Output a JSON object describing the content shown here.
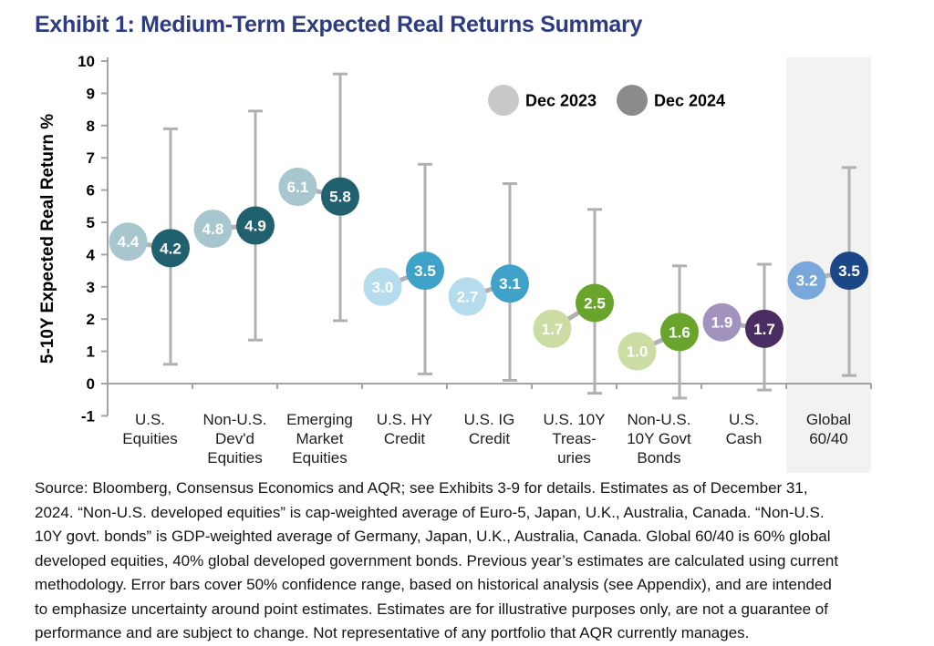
{
  "title": "Exhibit 1: Medium-Term Expected Real Returns Summary",
  "colors": {
    "title_navy": "#2d3c80",
    "axis_gray": "#a3a3a3",
    "error_bar_gray": "#b0b0b0",
    "highlight_band": "#f2f2f2",
    "value_text": "#ffffff"
  },
  "chart_data": {
    "type": "scatter",
    "title": "Exhibit 1: Medium-Term Expected Real Returns Summary",
    "ylabel": "5-10Y Expected Real Return %",
    "xlabel": "",
    "ylim": [
      -1,
      10
    ],
    "yticks": [
      10,
      9,
      8,
      7,
      6,
      5,
      4,
      3,
      2,
      1,
      0,
      -1
    ],
    "grid": false,
    "legend_position": "top-inside",
    "error_bar_note": "Error bars cover 50% confidence range",
    "series": [
      {
        "name": "Dec 2023",
        "color": "#c9c9c9"
      },
      {
        "name": "Dec 2024",
        "color": "#8b8b8b"
      }
    ],
    "categories": [
      "U.S. Equities",
      "Non-U.S. Dev'd Equities",
      "Emerging Market Equities",
      "U.S. HY Credit",
      "U.S. IG Credit",
      "U.S. 10Y Treasuries",
      "Non-U.S. 10Y Govt Bonds",
      "U.S. Cash",
      "Global 60/40"
    ],
    "points": [
      {
        "category": "U.S. Equities",
        "label_lines": [
          "U.S.",
          "Equities"
        ],
        "dec2023": 4.4,
        "dec2024": 4.2,
        "err_range": [
          0.6,
          7.9
        ],
        "color_2023": "#a7c6cd",
        "color_2024": "#21616f",
        "highlighted": false
      },
      {
        "category": "Non-U.S. Dev'd Equities",
        "label_lines": [
          "Non-U.S.",
          "Dev'd",
          "Equities"
        ],
        "dec2023": 4.8,
        "dec2024": 4.9,
        "err_range": [
          1.35,
          8.45
        ],
        "color_2023": "#a7c6cd",
        "color_2024": "#21616f",
        "highlighted": false
      },
      {
        "category": "Emerging Market Equities",
        "label_lines": [
          "Emerging",
          "Market",
          "Equities"
        ],
        "dec2023": 6.1,
        "dec2024": 5.8,
        "err_range": [
          1.95,
          9.6
        ],
        "color_2023": "#a7c6cd",
        "color_2024": "#21616f",
        "highlighted": false
      },
      {
        "category": "U.S. HY Credit",
        "label_lines": [
          "U.S. HY",
          "Credit"
        ],
        "dec2023": 3.0,
        "dec2024": 3.5,
        "err_range": [
          0.3,
          6.8
        ],
        "color_2023": "#b4dcec",
        "color_2024": "#3fa2c8",
        "highlighted": false
      },
      {
        "category": "U.S. IG Credit",
        "label_lines": [
          "U.S. IG",
          "Credit"
        ],
        "dec2023": 2.7,
        "dec2024": 3.1,
        "err_range": [
          0.1,
          6.2
        ],
        "color_2023": "#b4dcec",
        "color_2024": "#3fa2c8",
        "highlighted": false
      },
      {
        "category": "U.S. 10Y Treasuries",
        "label_lines": [
          "U.S. 10Y",
          "Treas-",
          "uries"
        ],
        "dec2023": 1.7,
        "dec2024": 2.5,
        "err_range": [
          -0.3,
          5.4
        ],
        "color_2023": "#cbdda3",
        "color_2024": "#69a52d",
        "highlighted": false
      },
      {
        "category": "Non-U.S. 10Y Govt Bonds",
        "label_lines": [
          "Non-U.S.",
          "10Y Govt",
          "Bonds"
        ],
        "dec2023": 1.0,
        "dec2024": 1.6,
        "err_range": [
          -0.45,
          3.65
        ],
        "color_2023": "#cbdda3",
        "color_2024": "#69a52d",
        "highlighted": false
      },
      {
        "category": "U.S. Cash",
        "label_lines": [
          "U.S.",
          "Cash"
        ],
        "dec2023": 1.9,
        "dec2024": 1.7,
        "err_range": [
          -0.2,
          3.7
        ],
        "color_2023": "#a193bd",
        "color_2024": "#4b2e61",
        "highlighted": false
      },
      {
        "category": "Global 60/40",
        "label_lines": [
          "Global",
          "60/40"
        ],
        "dec2023": 3.2,
        "dec2024": 3.5,
        "err_range": [
          0.25,
          6.7
        ],
        "color_2023": "#78a8db",
        "color_2024": "#1c4787",
        "highlighted": true
      }
    ]
  },
  "footer": {
    "lines": [
      "Source: Bloomberg, Consensus Economics and AQR; see Exhibits 3-9 for details. Estimates as of December 31,",
      "2024. “Non-U.S. developed equities” is cap-weighted average of Euro-5, Japan, U.K., Australia, Canada. “Non-U.S.",
      "10Y govt. bonds” is GDP-weighted average of Germany, Japan, U.K., Australia, Canada. Global 60/40 is 60% global",
      "developed equities, 40% global developed government bonds. Previous year’s estimates are calculated using current",
      "methodology. Error bars cover 50% confidence range, based on historical analysis (see Appendix), and are intended",
      "to emphasize uncertainty around point estimates. Estimates are for illustrative purposes only, are not a guarantee of",
      "performance and are subject to change. Not representative of any portfolio that AQR currently manages."
    ]
  }
}
